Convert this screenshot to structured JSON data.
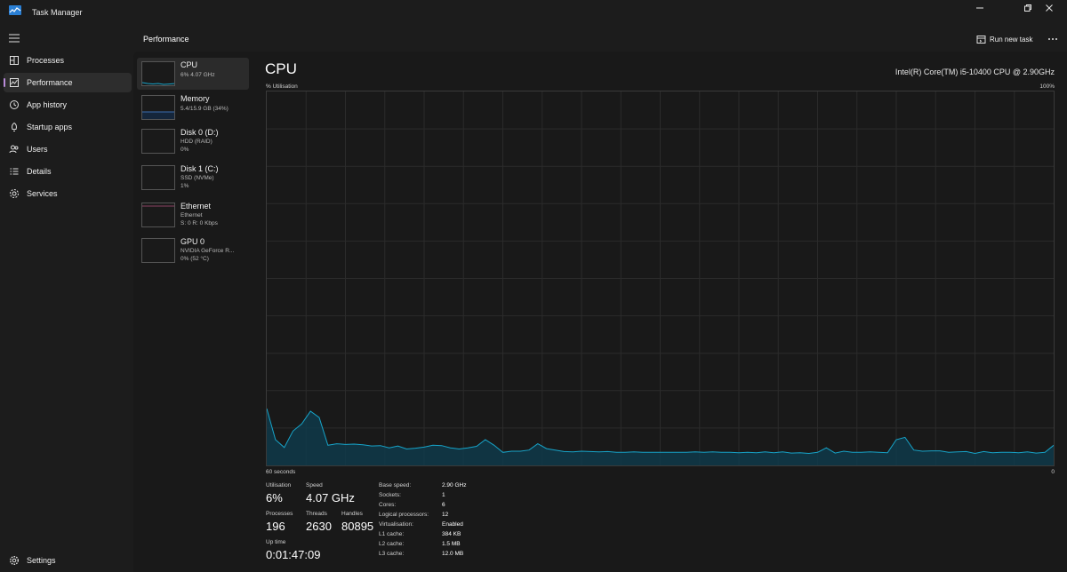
{
  "window": {
    "title": "Task Manager"
  },
  "nav": {
    "items": [
      {
        "label": "Processes",
        "icon": "processes-icon"
      },
      {
        "label": "Performance",
        "icon": "performance-icon"
      },
      {
        "label": "App history",
        "icon": "history-icon"
      },
      {
        "label": "Startup apps",
        "icon": "startup-icon"
      },
      {
        "label": "Users",
        "icon": "users-icon"
      },
      {
        "label": "Details",
        "icon": "details-icon"
      },
      {
        "label": "Services",
        "icon": "services-icon"
      }
    ],
    "settings_label": "Settings"
  },
  "header": {
    "title": "Performance",
    "run_new_task": "Run new task"
  },
  "devices": [
    {
      "name": "CPU",
      "line1": "6% 4.07 GHz",
      "line2": ""
    },
    {
      "name": "Memory",
      "line1": "5.4/15.9 GB (34%)",
      "line2": ""
    },
    {
      "name": "Disk 0 (D:)",
      "line1": "HDD (RAID)",
      "line2": "0%"
    },
    {
      "name": "Disk 1 (C:)",
      "line1": "SSD (NVMe)",
      "line2": "1%"
    },
    {
      "name": "Ethernet",
      "line1": "Ethernet",
      "line2": "S: 0 R: 0 Kbps"
    },
    {
      "name": "GPU 0",
      "line1": "NVIDIA GeForce R...",
      "line2": "0% (52 °C)"
    }
  ],
  "cpu_panel": {
    "title": "CPU",
    "model": "Intel(R) Core(TM) i5-10400 CPU @ 2.90GHz",
    "y_axis_label": "% Utilisation",
    "y_max_label": "100%",
    "x_left_label": "60 seconds",
    "x_right_label": "0"
  },
  "stats": {
    "utilisation_label": "Utilisation",
    "utilisation": "6%",
    "speed_label": "Speed",
    "speed": "4.07 GHz",
    "processes_label": "Processes",
    "processes": "196",
    "threads_label": "Threads",
    "threads": "2630",
    "handles_label": "Handles",
    "handles": "80895",
    "uptime_label": "Up time",
    "uptime": "0:01:47:09"
  },
  "specs": [
    {
      "key": "Base speed:",
      "value": "2.90 GHz"
    },
    {
      "key": "Sockets:",
      "value": "1"
    },
    {
      "key": "Cores:",
      "value": "6"
    },
    {
      "key": "Logical processors:",
      "value": "12"
    },
    {
      "key": "Virtualisation:",
      "value": "Enabled"
    },
    {
      "key": "L1 cache:",
      "value": "384 KB"
    },
    {
      "key": "L2 cache:",
      "value": "1.5 MB"
    },
    {
      "key": "L3 cache:",
      "value": "12.0 MB"
    }
  ],
  "colors": {
    "cpu_line": "#17a4c9",
    "cpu_fill": "#0f3a4a",
    "memory_line": "#3a6fb0",
    "ethernet_line": "#b0507a",
    "active_indicator": "#b98bd9"
  },
  "chart_data": {
    "type": "area",
    "ylim": [
      0,
      100
    ],
    "values": [
      15.2,
      6.9,
      4.8,
      9.2,
      11.1,
      14.5,
      12.8,
      5.4,
      5.8,
      5.6,
      5.7,
      5.5,
      5.2,
      5.3,
      4.7,
      5.2,
      4.4,
      4.6,
      4.9,
      5.4,
      5.3,
      4.7,
      4.4,
      4.7,
      5.1,
      6.9,
      5.4,
      3.5,
      3.8,
      3.8,
      4.1,
      5.8,
      4.5,
      4.1,
      3.7,
      3.6,
      3.8,
      3.7,
      3.6,
      3.7,
      3.5,
      3.5,
      3.6,
      3.5,
      3.5,
      3.5,
      3.5,
      3.5,
      3.5,
      3.6,
      3.5,
      3.6,
      3.5,
      3.5,
      3.4,
      3.5,
      3.4,
      3.6,
      3.4,
      3.6,
      3.3,
      3.4,
      3.2,
      3.5,
      4.7,
      3.3,
      3.8,
      3.5,
      3.5,
      3.6,
      3.5,
      3.4,
      6.9,
      7.5,
      4.1,
      3.8,
      3.9,
      3.9,
      3.5,
      3.6,
      3.7,
      3.2,
      3.7,
      3.4,
      3.5,
      3.5,
      3.4,
      3.6,
      3.3,
      3.5,
      5.4
    ]
  }
}
